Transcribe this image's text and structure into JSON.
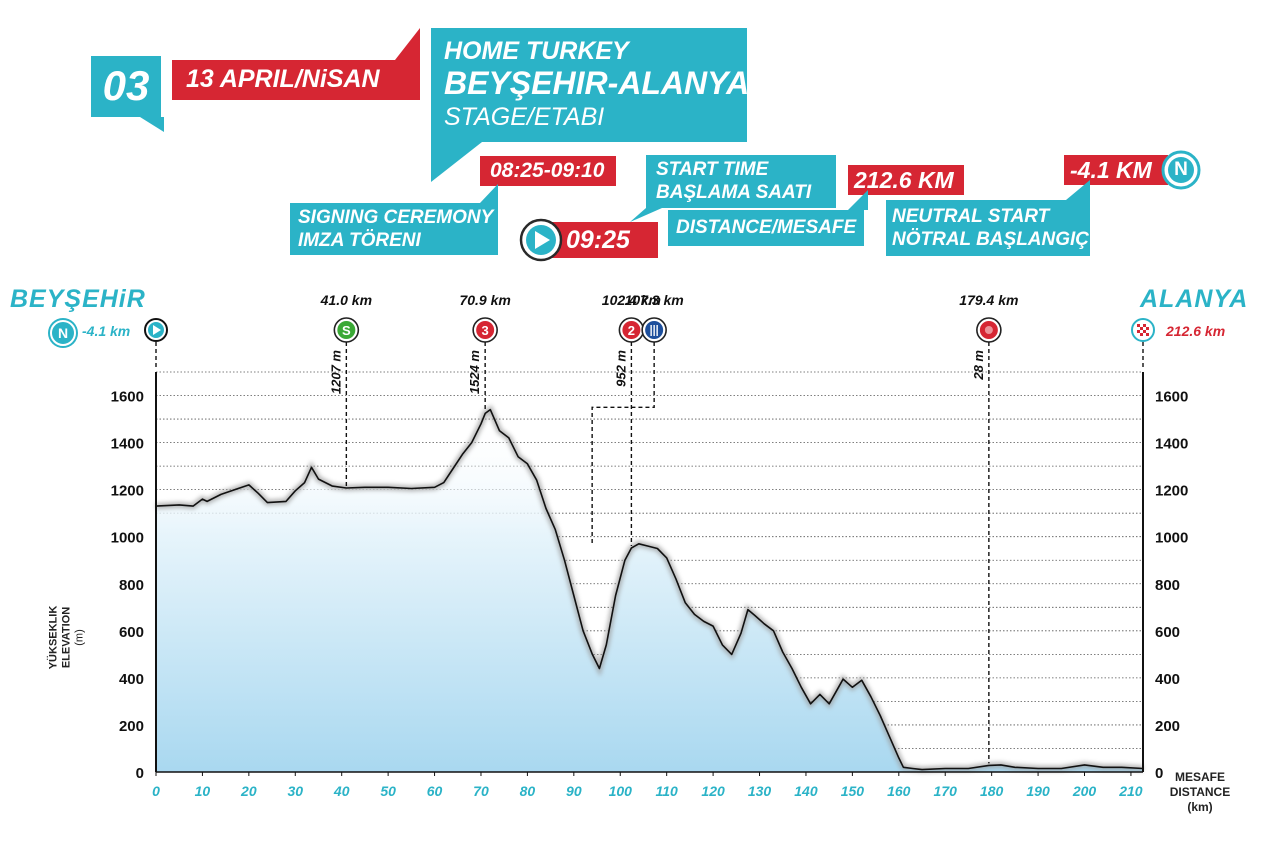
{
  "banner": {
    "stage_number": "03",
    "date": "13 APRIL/NiSAN",
    "title_line1": "HOME TURKEY",
    "title_line2": "BEYŞEHIR-ALANYA",
    "title_line3": "STAGE/ETABI",
    "signing_time": "08:25-09:10",
    "signing_label_1": "SIGNING CEREMONY",
    "signing_label_2": "IMZA TÖRENI",
    "start_time": "09:25",
    "start_label_1": "START TIME",
    "start_label_2": "BAŞLAMA SAATI",
    "distance_value": "212.6 KM",
    "distance_label": "DISTANCE/MESAFE",
    "neutral_value": "-4.1 KM",
    "neutral_badge": "N",
    "neutral_label_1": "NEUTRAL START",
    "neutral_label_2": "NÖTRAL BAŞLANGIÇ",
    "colors": {
      "teal": "#2bb3c7",
      "red": "#d62633",
      "green": "#3aa935",
      "navy": "#1d4f9c"
    }
  },
  "route": {
    "start_city": "BEYŞEHiR",
    "finish_city": "ALANYA",
    "neutral_icon": "N",
    "neutral_km": "-4.1 km",
    "finish_km": "212.6 km",
    "markers": [
      {
        "km_label": "41.0 km",
        "km": 41.0,
        "symbol": "S",
        "icon": "sprint-icon",
        "color": "#3aa935",
        "elev_label": "1207 m",
        "elev": 1207
      },
      {
        "km_label": "70.9 km",
        "km": 70.9,
        "symbol": "3",
        "icon": "climb-cat3-icon",
        "color": "#d62633",
        "elev_label": "1524 m",
        "elev": 1524
      },
      {
        "km_label": "102.4 km",
        "km": 102.4,
        "symbol": "2",
        "icon": "climb-cat2-icon",
        "color": "#d62633",
        "elev_label": "952 m",
        "elev": 952
      },
      {
        "km_label": "107.3 km",
        "km": 107.3,
        "symbol": "",
        "icon": "feed-zone-icon",
        "color": "#1d4f9c",
        "elev_label": "",
        "elev": 1550
      },
      {
        "km_label": "179.4 km",
        "km": 179.4,
        "symbol": "",
        "icon": "finish-zone-icon",
        "color": "#d62633",
        "elev_label": "28 m",
        "elev": 28
      }
    ]
  },
  "chart_data": {
    "type": "area",
    "title": "",
    "ylabel": "YÜKSEKLIK ELEVATION (m)",
    "ylabel_1": "YÜKSEKLIK",
    "ylabel_2": "ELEVATION",
    "ylabel_3": "(m)",
    "xlabel": "MESAFE DISTANCE (km)",
    "xlabel_1": "MESAFE",
    "xlabel_2": "DISTANCE",
    "xlabel_3": "(km)",
    "xlim": [
      0,
      212.6
    ],
    "ylim": [
      0,
      1700
    ],
    "x_ticks": [
      0,
      10,
      20,
      30,
      40,
      50,
      60,
      70,
      80,
      90,
      100,
      110,
      120,
      130,
      140,
      150,
      160,
      170,
      180,
      190,
      200,
      210
    ],
    "y_ticks": [
      0,
      200,
      400,
      600,
      800,
      1000,
      1200,
      1400,
      1600
    ],
    "grid": true,
    "series": [
      {
        "x": [
          0,
          5,
          8,
          10,
          11,
          14,
          17,
          20,
          22,
          24,
          28,
          30,
          32,
          33.5,
          35,
          38,
          41,
          45,
          50,
          55,
          60,
          62,
          64,
          66,
          68,
          70,
          70.9,
          72,
          74,
          76,
          78,
          80,
          82,
          84,
          86,
          88,
          90,
          92,
          94,
          95.5,
          97,
          99,
          101,
          102.4,
          104,
          106,
          108,
          110,
          112,
          114,
          116,
          118,
          120,
          122,
          124,
          126,
          127.5,
          129,
          131,
          133,
          135,
          137,
          139,
          141,
          143,
          145,
          147,
          148,
          150,
          152,
          154,
          156,
          158,
          160,
          161,
          163,
          165,
          170,
          175,
          179.4,
          182,
          185,
          190,
          195,
          200,
          204,
          208,
          212.6
        ],
        "y": [
          1130,
          1135,
          1130,
          1160,
          1150,
          1180,
          1200,
          1220,
          1185,
          1145,
          1150,
          1195,
          1230,
          1295,
          1245,
          1215,
          1207,
          1210,
          1210,
          1205,
          1210,
          1230,
          1290,
          1350,
          1400,
          1480,
          1524,
          1540,
          1450,
          1420,
          1340,
          1310,
          1240,
          1120,
          1030,
          900,
          750,
          600,
          500,
          440,
          540,
          750,
          900,
          952,
          970,
          960,
          950,
          910,
          820,
          720,
          670,
          640,
          620,
          540,
          500,
          590,
          690,
          665,
          630,
          600,
          510,
          440,
          360,
          290,
          330,
          290,
          360,
          395,
          360,
          390,
          320,
          240,
          150,
          60,
          20,
          15,
          10,
          15,
          15,
          28,
          30,
          20,
          15,
          15,
          30,
          20,
          20,
          15
        ]
      }
    ]
  }
}
